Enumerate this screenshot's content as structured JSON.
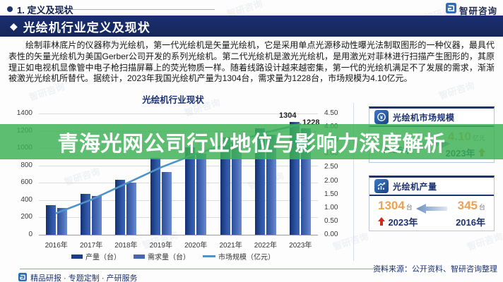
{
  "header": {
    "breadcrumb": "1. 定义及现状",
    "brand": "智研咨询",
    "section_title": "光绘机行业定义及现状"
  },
  "body": {
    "paragraph": "绘制菲林底片的仪器称为光绘机，第一代光绘机是矢量光绘机，它是采用单点光源移动性曝光法制取图形的一种仪器，最具代表性的矢量光绘机为美国Gerber公司开发的系列光绘机。第二代光绘机是激光光绘机，是用激光对菲林进行扫描产生图形的，其原理正如电视机显像管中电子枪扫描屏幕上的荧光物质一样。随着线路设计越来越密集，第一代的光绘机满足不了发展的需求，渐渐被激光光绘机所替代。据统计，2023年我国光绘机产量为1304台，需求量为1228台，市场规模为4.10亿元。"
  },
  "chart_data": {
    "type": "bar+line",
    "title": "光绘机行业现状",
    "categories": [
      "2016年",
      "2017年",
      "2018年",
      "2019年",
      "2020年",
      "2021年",
      "2022年",
      "2023年"
    ],
    "series": [
      {
        "name": "产量（台）",
        "type": "bar",
        "color": "#1d3c86",
        "gradient": "linear-gradient(90deg,#132f6f 0%,#2b519f 55%,#3c63b5 100%)",
        "values": [
          345,
          470,
          633,
          890,
          1010,
          1120,
          1230,
          1304
        ]
      },
      {
        "name": "需求量（台）",
        "type": "bar",
        "color": "#4568b0",
        "gradient": "linear-gradient(90deg,#2c4f9b 0%,#4a6cb6 55%,#6b8cd0 100%)",
        "values": [
          308,
          448,
          601,
          724,
          940,
          1060,
          1160,
          1228
        ]
      },
      {
        "name": "市场规模（亿元）",
        "type": "line",
        "color": "#4f93c8",
        "axis": "right",
        "values": [
          0.8,
          1.3,
          1.9,
          2.5,
          3.0,
          3.4,
          3.8,
          4.1
        ]
      }
    ],
    "left_axis": {
      "min": 0,
      "max": 1400,
      "step": 200
    },
    "right_axis": {
      "min": 0,
      "max": 4.5,
      "step": 0.5
    },
    "end_labels": {
      "production": "1304",
      "demand": "1228"
    },
    "legend_position": "bottom",
    "grid": true
  },
  "overlay": {
    "text": "青海光网公司行业地位与影响力深度解析",
    "color": "rgba(62,178,86,0.84)"
  },
  "cards": {
    "market": {
      "title": "光绘机市场规模",
      "start_year": "2016年",
      "value": "4.10",
      "unit": "亿元",
      "end_year": "2023年"
    },
    "production": {
      "title": "光绘机产量",
      "new_value": "1304",
      "new_unit": "台",
      "new_year": "2023年",
      "old_value": "345",
      "old_unit": "台",
      "old_year": "2016年"
    }
  },
  "footer": {
    "source": "资料来源：公开资料、智研咨询整理",
    "tagline": "精品研报 · 专题定制 · 产研服务"
  },
  "watermark": {
    "text": "智研咨询"
  },
  "colors": {
    "navy": "#1c3272",
    "band_bg": "#1b2f72",
    "orange_value": "#f0a14f",
    "red_arrow": "#cf2a1b",
    "orange_arrow": "#d9822b",
    "line_blue": "#4f93c8"
  }
}
